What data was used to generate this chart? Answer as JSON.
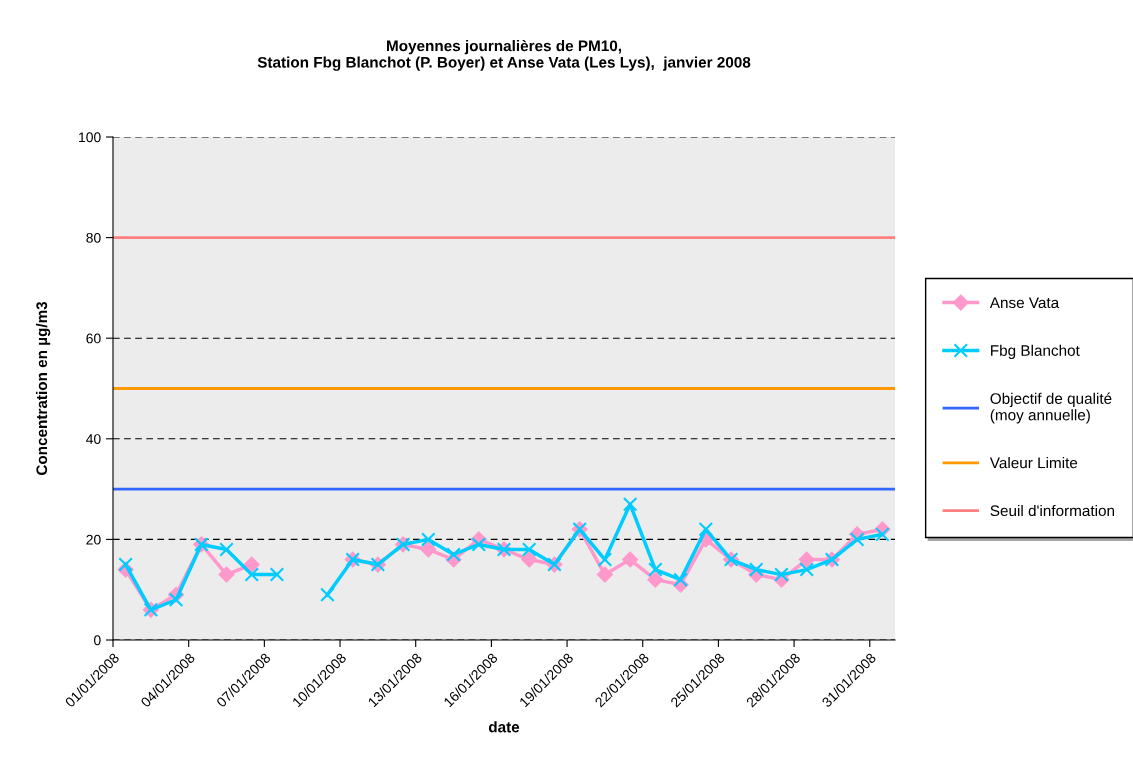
{
  "chart_data": {
    "type": "line",
    "title": "Moyennes journalières de PM10,\nStation Fbg Blanchot (P. Boyer) et Anse Vata (Les Lys),  janvier 2008",
    "xlabel": "date",
    "ylabel": "Concentration en µg/m3",
    "x": [
      "2008-01-01T12:00",
      "2008-01-02T12:00",
      "2008-01-03T12:00",
      "2008-01-04T12:00",
      "2008-01-05T12:00",
      "2008-01-06T12:00",
      "2008-01-07T12:00",
      "2008-01-08T12:00",
      "2008-01-09T12:00",
      "2008-01-10T12:00",
      "2008-01-11T12:00",
      "2008-01-12T12:00",
      "2008-01-13T12:00",
      "2008-01-14T12:00",
      "2008-01-15T12:00",
      "2008-01-16T12:00",
      "2008-01-17T12:00",
      "2008-01-18T12:00",
      "2008-01-19T12:00",
      "2008-01-20T12:00",
      "2008-01-21T12:00",
      "2008-01-22T12:00",
      "2008-01-23T12:00",
      "2008-01-24T12:00",
      "2008-01-25T12:00",
      "2008-01-26T12:00",
      "2008-01-27T12:00",
      "2008-01-28T12:00",
      "2008-01-29T12:00",
      "2008-01-30T12:00",
      "2008-01-31T12:00"
    ],
    "series": [
      {
        "name": "Anse Vata",
        "color": "#ff99cc",
        "marker": "diamond",
        "values": [
          14,
          6,
          9,
          19,
          13,
          15,
          null,
          null,
          null,
          16,
          15,
          19,
          18,
          16,
          20,
          18,
          16,
          15,
          22,
          13,
          16,
          12,
          11,
          20,
          16,
          13,
          12,
          16,
          16,
          21,
          22
        ]
      },
      {
        "name": "Fbg Blanchot",
        "color": "#00ccff",
        "marker": "cross",
        "values": [
          15,
          6,
          8,
          19,
          18,
          13,
          13,
          null,
          9,
          16,
          15,
          19,
          20,
          17,
          19,
          18,
          18,
          15,
          22,
          16,
          27,
          14,
          12,
          22,
          16,
          14,
          13,
          14,
          16,
          20,
          21
        ]
      }
    ],
    "ref_lines": [
      {
        "axis": "y",
        "value": 30,
        "label": "Objectif de qualité\n(moy annuelle)",
        "color": "#3366ff"
      },
      {
        "axis": "y",
        "value": 50,
        "label": "Valeur Limite",
        "color": "#ff9900"
      },
      {
        "axis": "y",
        "value": 80,
        "label": "Seuil d'information",
        "color": "#ff8080"
      }
    ],
    "xlim": [
      "2008-01-01",
      "2008-02-01"
    ],
    "xticks": [
      {
        "value": "2008-01-01",
        "label": "01/01/2008"
      },
      {
        "value": "2008-01-04",
        "label": "04/01/2008"
      },
      {
        "value": "2008-01-07",
        "label": "07/01/2008"
      },
      {
        "value": "2008-01-10",
        "label": "10/01/2008"
      },
      {
        "value": "2008-01-13",
        "label": "13/01/2008"
      },
      {
        "value": "2008-01-16",
        "label": "16/01/2008"
      },
      {
        "value": "2008-01-19",
        "label": "19/01/2008"
      },
      {
        "value": "2008-01-22",
        "label": "22/01/2008"
      },
      {
        "value": "2008-01-25",
        "label": "25/01/2008"
      },
      {
        "value": "2008-01-28",
        "label": "28/01/2008"
      },
      {
        "value": "2008-01-31",
        "label": "31/01/2008"
      }
    ],
    "ylim": [
      0,
      100
    ],
    "yticks": [
      0,
      20,
      40,
      60,
      80,
      100
    ],
    "grid": "y",
    "legend": "right"
  }
}
